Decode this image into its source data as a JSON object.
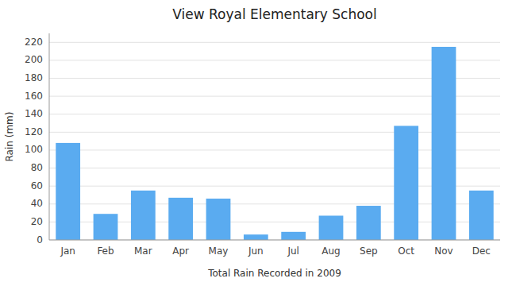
{
  "chart_data": {
    "type": "bar",
    "title": "View Royal Elementary School",
    "xlabel": "Total Rain Recorded in 2009",
    "ylabel": "Rain (mm)",
    "categories": [
      "Jan",
      "Feb",
      "Mar",
      "Apr",
      "May",
      "Jun",
      "Jul",
      "Aug",
      "Sep",
      "Oct",
      "Nov",
      "Dec"
    ],
    "values": [
      108,
      29,
      55,
      47,
      46,
      6,
      9,
      27,
      38,
      127,
      215,
      55
    ],
    "color": "#5aabf0",
    "ylim": [
      0,
      230
    ],
    "yticks": [
      0,
      20,
      40,
      60,
      80,
      100,
      120,
      140,
      160,
      180,
      200,
      220
    ],
    "grid": true
  }
}
